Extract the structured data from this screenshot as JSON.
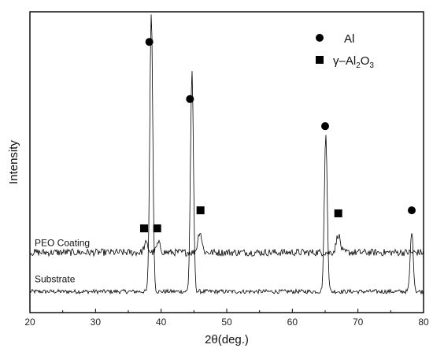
{
  "chart_data": {
    "type": "line",
    "xlabel": "2θ(deg.)",
    "ylabel": "Intensity",
    "xlim": [
      20,
      80
    ],
    "xticks": [
      20,
      30,
      40,
      50,
      60,
      70,
      80
    ],
    "ylim": [
      0,
      100
    ],
    "grid": false,
    "legend_position": "top-right",
    "legend": [
      {
        "marker": "circle",
        "label": "Al"
      },
      {
        "marker": "square",
        "label_parts": [
          "γ–Al",
          "2",
          "O",
          "3"
        ]
      }
    ],
    "series": [
      {
        "name": "Substrate",
        "baseline": 7,
        "peaks": [
          {
            "x": 38.5,
            "y": 100
          },
          {
            "x": 44.7,
            "y": 80
          },
          {
            "x": 65.1,
            "y": 59
          },
          {
            "x": 78.2,
            "y": 27
          }
        ]
      },
      {
        "name": "PEO Coating",
        "baseline": 20,
        "peaks": [
          {
            "x": 37.7,
            "y": 23
          },
          {
            "x": 39.6,
            "y": 23
          },
          {
            "x": 45.9,
            "y": 27
          },
          {
            "x": 67.0,
            "y": 26
          }
        ]
      }
    ],
    "annotations": [
      {
        "marker": "circle",
        "x": 38.2,
        "y": 90
      },
      {
        "marker": "circle",
        "x": 44.4,
        "y": 71
      },
      {
        "marker": "circle",
        "x": 65.0,
        "y": 62
      },
      {
        "marker": "circle",
        "x": 78.2,
        "y": 34
      },
      {
        "marker": "square",
        "x": 37.4,
        "y": 28
      },
      {
        "marker": "square",
        "x": 39.4,
        "y": 28
      },
      {
        "marker": "square",
        "x": 46.0,
        "y": 34
      },
      {
        "marker": "square",
        "x": 67.0,
        "y": 33
      }
    ]
  }
}
